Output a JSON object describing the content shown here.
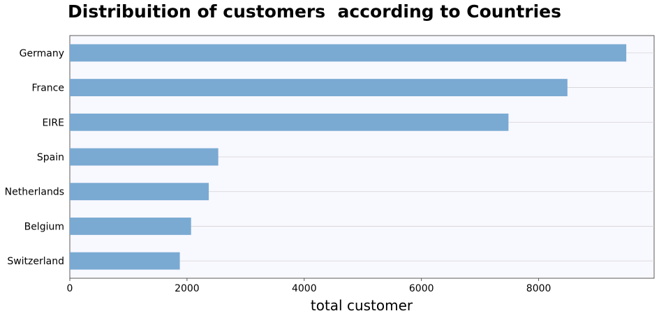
{
  "chart_data": {
    "type": "bar",
    "orientation": "horizontal",
    "title": "Distribuition of customers  according to Countries",
    "xlabel": "total customer",
    "ylabel": "",
    "categories": [
      "Germany",
      "France",
      "EIRE",
      "Spain",
      "Netherlands",
      "Belgium",
      "Switzerland"
    ],
    "values": [
      9495,
      8491,
      7485,
      2533,
      2371,
      2069,
      1877
    ],
    "xlim": [
      0,
      9970
    ],
    "xticks": [
      0,
      2000,
      4000,
      6000,
      8000
    ],
    "xtick_labels": [
      "0",
      "2000",
      "4000",
      "6000",
      "8000"
    ],
    "grid": true,
    "colors": {
      "bar": "#7aaad2",
      "plot_bg": "#f8f8ff",
      "grid": "#d3d3d3"
    }
  }
}
